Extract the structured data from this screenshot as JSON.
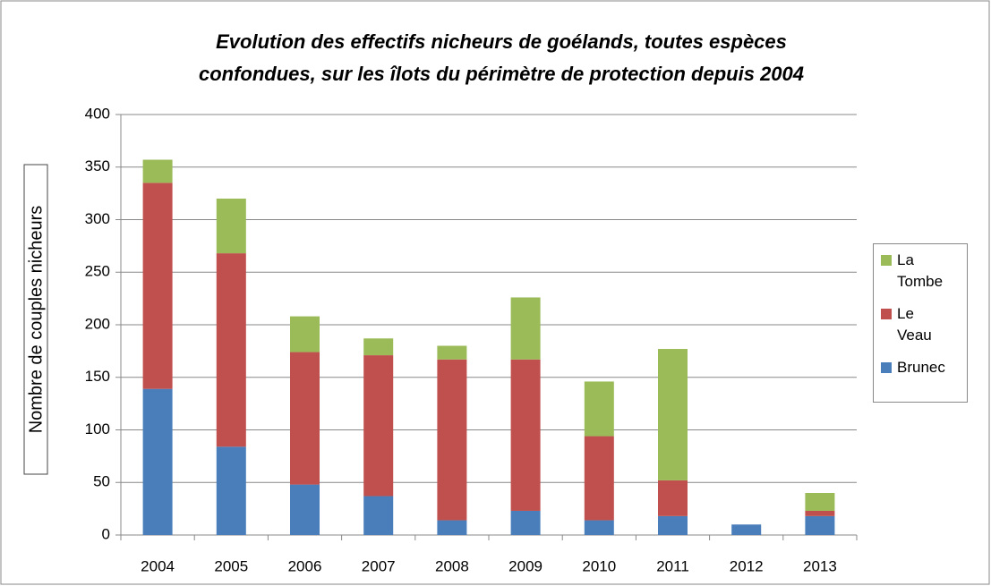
{
  "chart_data": {
    "type": "bar",
    "stacked": true,
    "title": [
      "Evolution des effectifs nicheurs de goélands,  toutes espèces",
      "confondues, sur les îlots du périmètre de protection depuis  2004"
    ],
    "y_label": "Nombre de couples nicheurs",
    "categories": [
      "2004",
      "2005",
      "2006",
      "2007",
      "2008",
      "2009",
      "2010",
      "2011",
      "2012",
      "2013"
    ],
    "series": [
      {
        "name": "Brunec",
        "color": "#4a7ebb",
        "values": [
          139,
          84,
          48,
          37,
          14,
          23,
          14,
          18,
          10,
          18
        ]
      },
      {
        "name": "Le Veau",
        "color": "#c0504d",
        "values": [
          196,
          184,
          126,
          134,
          153,
          144,
          80,
          34,
          0,
          5
        ]
      },
      {
        "name": "La Tombe",
        "color": "#9bbb59",
        "values": [
          22,
          52,
          34,
          16,
          13,
          59,
          52,
          125,
          0,
          17
        ]
      }
    ],
    "ylim": [
      0,
      400
    ],
    "yticks": [
      0,
      50,
      100,
      150,
      200,
      250,
      300,
      350,
      400
    ],
    "grid": true,
    "legend": "right"
  }
}
